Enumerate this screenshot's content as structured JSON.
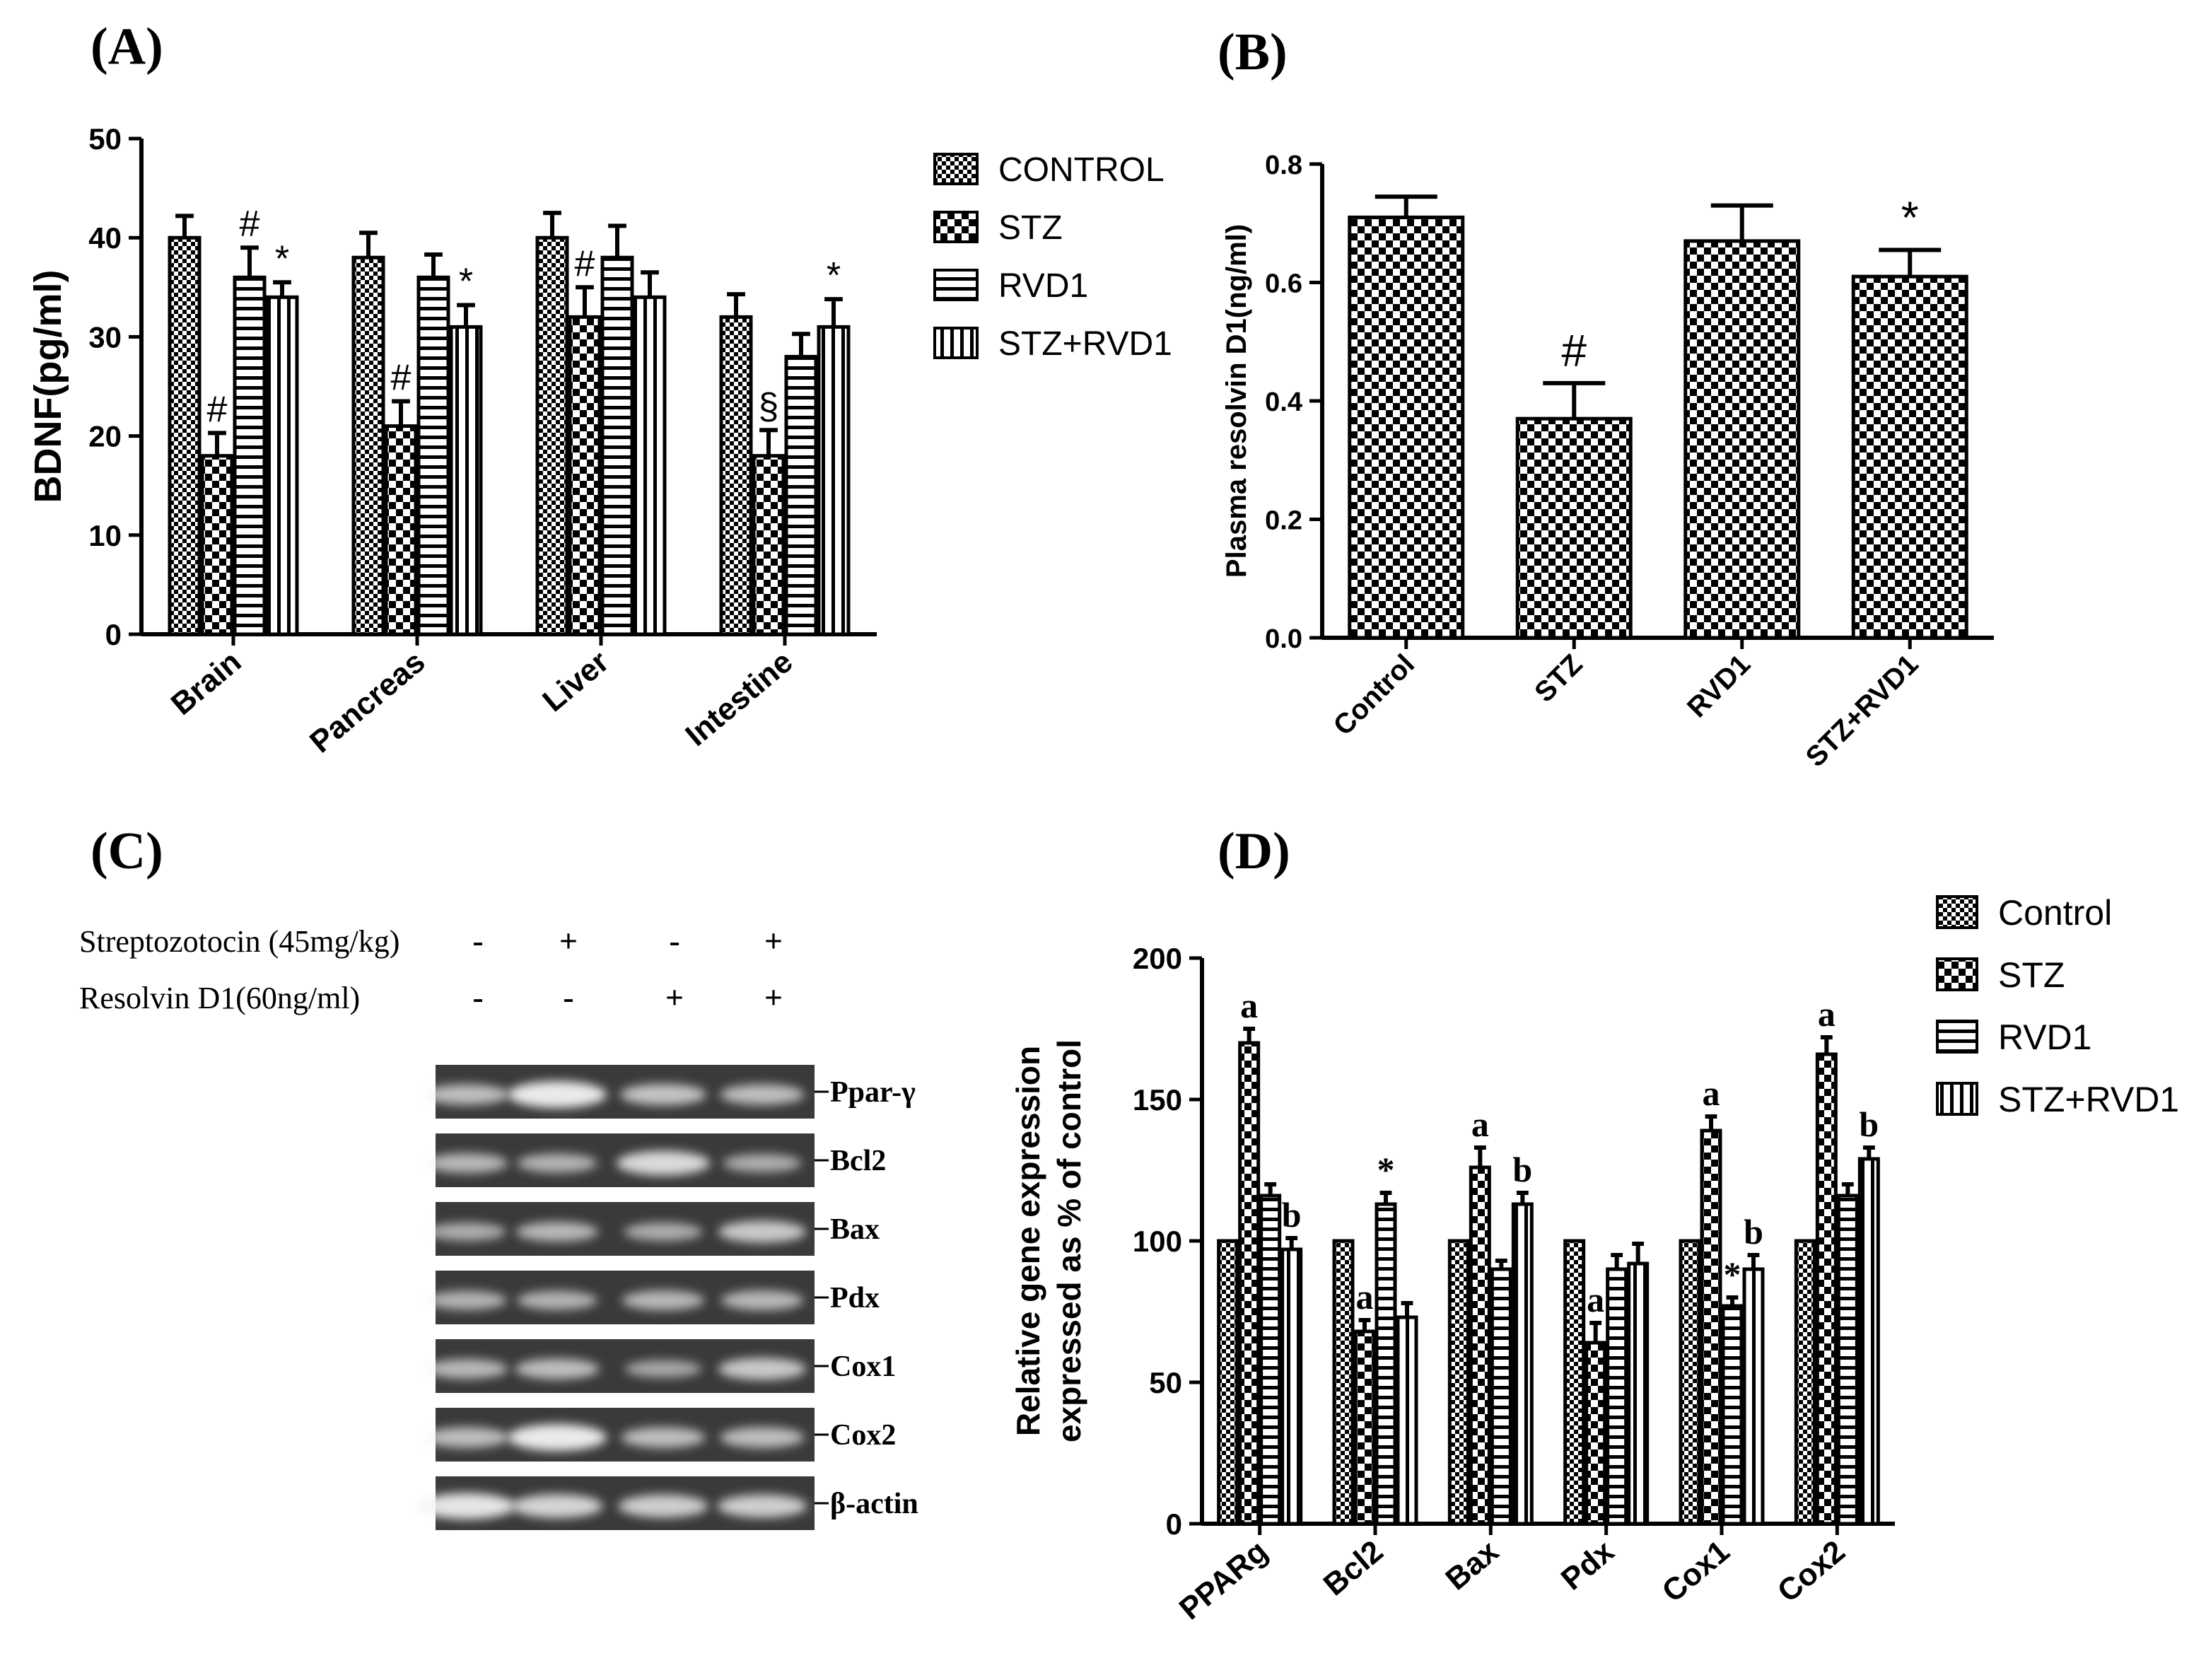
{
  "panel_labels": [
    "(A)",
    "(B)",
    "(C)",
    "(D)"
  ],
  "colors": {
    "axis": "#000000",
    "bar_fill": "#ffffff",
    "gel_background": "#3a3a3a",
    "band": "#f4f4f4"
  },
  "chart_data": [
    {
      "id": "A",
      "type": "bar",
      "ylabel": "BDNF(pg/ml)",
      "xlabel": "",
      "ylim": [
        0,
        50
      ],
      "yticks": [
        0,
        10,
        20,
        30,
        40,
        50
      ],
      "categories": [
        "Brain",
        "Pancreas",
        "Liver",
        "Intestine"
      ],
      "legend_position": "right",
      "series": [
        {
          "name": "CONTROL",
          "pattern": "fine-check",
          "values": [
            40,
            38,
            40,
            32
          ],
          "errors": [
            2.2,
            2.5,
            2.5,
            2.3
          ]
        },
        {
          "name": "STZ",
          "pattern": "coarse-check",
          "values": [
            18,
            21,
            32,
            18
          ],
          "errors": [
            2.3,
            2.5,
            3.0,
            2.6
          ]
        },
        {
          "name": "RVD1",
          "pattern": "horizontal",
          "values": [
            36,
            36,
            38,
            28
          ],
          "errors": [
            3.0,
            2.3,
            3.2,
            2.3
          ]
        },
        {
          "name": "STZ+RVD1",
          "pattern": "vertical",
          "values": [
            34,
            31,
            34,
            31
          ],
          "errors": [
            1.5,
            2.2,
            2.5,
            2.8
          ]
        }
      ],
      "annotations": [
        {
          "series": 1,
          "category": 0,
          "text": "#"
        },
        {
          "series": 2,
          "category": 0,
          "text": "#"
        },
        {
          "series": 3,
          "category": 0,
          "text": "*"
        },
        {
          "series": 1,
          "category": 1,
          "text": "#"
        },
        {
          "series": 3,
          "category": 1,
          "text": "*"
        },
        {
          "series": 1,
          "category": 2,
          "text": "#"
        },
        {
          "series": 1,
          "category": 3,
          "text": "§"
        },
        {
          "series": 3,
          "category": 3,
          "text": "*"
        }
      ]
    },
    {
      "id": "B",
      "type": "bar",
      "ylabel": "Plasma resolvin D1(ng/ml)",
      "xlabel": "",
      "ylim": [
        0,
        0.8
      ],
      "yticks": [
        "0.0",
        "0.2",
        "0.4",
        "0.6",
        "0.8"
      ],
      "categories": [
        "Control",
        "STZ",
        "RVD1",
        "STZ+RVD1"
      ],
      "values": [
        0.71,
        0.37,
        0.67,
        0.61
      ],
      "errors": [
        0.035,
        0.06,
        0.06,
        0.045
      ],
      "pattern": "coarse-check",
      "annotations": [
        {
          "category": 1,
          "text": "#"
        },
        {
          "category": 3,
          "text": "*"
        }
      ]
    },
    {
      "id": "D",
      "type": "bar",
      "ylabel": "Relative gene expression expressed as % of control",
      "ylabel_lines": [
        "Relative gene expression",
        "expressed as % of control"
      ],
      "xlabel": "",
      "ylim": [
        0,
        200
      ],
      "yticks": [
        0,
        50,
        100,
        150,
        200
      ],
      "categories": [
        "PPARg",
        "Bcl2",
        "Bax",
        "Pdx",
        "Cox1",
        "Cox2"
      ],
      "legend_position": "top-right",
      "series": [
        {
          "name": "Control",
          "pattern": "fine-check",
          "values": [
            100,
            100,
            100,
            100,
            100,
            100
          ],
          "errors": [
            0,
            0,
            0,
            0,
            0,
            0
          ]
        },
        {
          "name": "STZ",
          "pattern": "coarse-check",
          "values": [
            170,
            68,
            126,
            64,
            139,
            166
          ],
          "errors": [
            5,
            4,
            7,
            7,
            5,
            6
          ]
        },
        {
          "name": "RVD1",
          "pattern": "horizontal",
          "values": [
            116,
            113,
            90,
            90,
            77,
            116
          ],
          "errors": [
            4,
            4,
            3,
            5,
            3,
            4
          ]
        },
        {
          "name": "STZ+RVD1",
          "pattern": "vertical",
          "values": [
            97,
            73,
            113,
            92,
            90,
            129
          ],
          "errors": [
            4,
            5,
            4,
            7,
            5,
            4
          ]
        }
      ],
      "annotations": [
        {
          "series": 1,
          "category": 0,
          "text": "a"
        },
        {
          "series": 3,
          "category": 0,
          "text": "b"
        },
        {
          "series": 1,
          "category": 1,
          "text": "a"
        },
        {
          "series": 2,
          "category": 1,
          "text": "*"
        },
        {
          "series": 1,
          "category": 2,
          "text": "a"
        },
        {
          "series": 3,
          "category": 2,
          "text": "b"
        },
        {
          "series": 1,
          "category": 3,
          "text": "a"
        },
        {
          "series": 1,
          "category": 4,
          "text": "a"
        },
        {
          "series": 2,
          "category": 4,
          "text": "*"
        },
        {
          "series": 3,
          "category": 4,
          "text": "b"
        },
        {
          "series": 1,
          "category": 5,
          "text": "a"
        },
        {
          "series": 3,
          "category": 5,
          "text": "b"
        }
      ]
    }
  ],
  "gel": {
    "treatments": [
      {
        "label": "Streptozotocin (45mg/kg)",
        "signs": [
          "-",
          "+",
          "-",
          "+"
        ]
      },
      {
        "label": "Resolvin D1(60ng/ml)",
        "signs": [
          "-",
          "-",
          "+",
          "+"
        ]
      }
    ],
    "genes": [
      {
        "label": "Ppar-γ",
        "intensity": [
          0.6,
          1.0,
          0.65,
          0.6
        ]
      },
      {
        "label": "Bcl2",
        "intensity": [
          0.55,
          0.5,
          0.85,
          0.45
        ]
      },
      {
        "label": "Bax",
        "intensity": [
          0.45,
          0.55,
          0.45,
          0.7
        ]
      },
      {
        "label": "Pdx",
        "intensity": [
          0.5,
          0.5,
          0.55,
          0.55
        ]
      },
      {
        "label": "Cox1",
        "intensity": [
          0.55,
          0.6,
          0.4,
          0.7
        ]
      },
      {
        "label": "Cox2",
        "intensity": [
          0.6,
          1.0,
          0.6,
          0.6
        ]
      },
      {
        "label": "β-actin",
        "intensity": [
          0.95,
          0.8,
          0.75,
          0.75
        ]
      }
    ]
  }
}
